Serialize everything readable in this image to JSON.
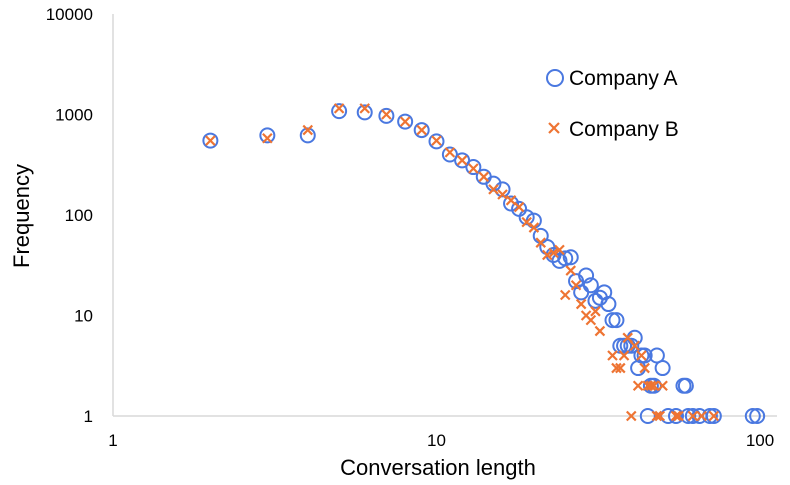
{
  "chart_data": {
    "type": "scatter",
    "xlabel": "Conversation length",
    "ylabel": "Frequency",
    "x_scale": "log",
    "y_scale": "log",
    "xlim": [
      1,
      100
    ],
    "ylim": [
      1,
      10000
    ],
    "x_ticks": [
      "1",
      "10",
      "100"
    ],
    "y_ticks": [
      "1",
      "10",
      "100",
      "1000",
      "10000"
    ],
    "grid": false,
    "legend_position": "top-right",
    "series": [
      {
        "name": "Company A",
        "marker": "circle",
        "color": "#4a78e0",
        "points": [
          [
            2,
            550
          ],
          [
            3,
            620
          ],
          [
            4,
            620
          ],
          [
            5,
            1080
          ],
          [
            6,
            1050
          ],
          [
            7,
            970
          ],
          [
            8,
            850
          ],
          [
            9,
            700
          ],
          [
            10,
            540
          ],
          [
            11,
            400
          ],
          [
            12,
            350
          ],
          [
            13,
            300
          ],
          [
            14,
            240
          ],
          [
            15,
            205
          ],
          [
            16,
            180
          ],
          [
            17,
            130
          ],
          [
            18,
            115
          ],
          [
            19,
            95
          ],
          [
            20,
            88
          ],
          [
            21,
            62
          ],
          [
            22,
            48
          ],
          [
            23,
            40
          ],
          [
            24,
            35
          ],
          [
            25,
            37
          ],
          [
            26,
            38
          ],
          [
            27,
            22
          ],
          [
            28,
            17
          ],
          [
            29,
            25
          ],
          [
            30,
            20
          ],
          [
            31,
            14
          ],
          [
            32,
            15
          ],
          [
            33,
            17
          ],
          [
            34,
            13
          ],
          [
            35,
            9
          ],
          [
            36,
            9
          ],
          [
            37,
            5
          ],
          [
            38,
            5
          ],
          [
            39,
            5
          ],
          [
            40,
            5
          ],
          [
            41,
            6
          ],
          [
            42,
            3
          ],
          [
            43,
            4
          ],
          [
            44,
            4
          ],
          [
            45,
            1
          ],
          [
            46,
            2
          ],
          [
            47,
            2
          ],
          [
            48,
            4
          ],
          [
            50,
            3
          ],
          [
            52,
            1
          ],
          [
            55,
            1
          ],
          [
            58,
            2
          ],
          [
            59,
            2
          ],
          [
            60,
            1
          ],
          [
            62,
            1
          ],
          [
            65,
            1
          ],
          [
            70,
            1
          ],
          [
            72,
            1
          ],
          [
            95,
            1
          ],
          [
            98,
            1
          ]
        ]
      },
      {
        "name": "Company B",
        "marker": "cross",
        "color": "#ee7433",
        "points": [
          [
            2,
            550
          ],
          [
            3,
            580
          ],
          [
            4,
            700
          ],
          [
            5,
            1150
          ],
          [
            6,
            1150
          ],
          [
            7,
            1000
          ],
          [
            8,
            850
          ],
          [
            9,
            700
          ],
          [
            10,
            550
          ],
          [
            11,
            420
          ],
          [
            12,
            350
          ],
          [
            13,
            290
          ],
          [
            14,
            240
          ],
          [
            15,
            180
          ],
          [
            16,
            160
          ],
          [
            17,
            140
          ],
          [
            18,
            120
          ],
          [
            19,
            85
          ],
          [
            20,
            75
          ],
          [
            21,
            53
          ],
          [
            22,
            40
          ],
          [
            23,
            42
          ],
          [
            24,
            45
          ],
          [
            25,
            16
          ],
          [
            26,
            28
          ],
          [
            27,
            20
          ],
          [
            28,
            13
          ],
          [
            29,
            10
          ],
          [
            30,
            9
          ],
          [
            31,
            11
          ],
          [
            32,
            7
          ],
          [
            35,
            4
          ],
          [
            36,
            3
          ],
          [
            37,
            3
          ],
          [
            38,
            4
          ],
          [
            39,
            6
          ],
          [
            40,
            1
          ],
          [
            41,
            5
          ],
          [
            42,
            2
          ],
          [
            43,
            4
          ],
          [
            44,
            3
          ],
          [
            45,
            2
          ],
          [
            46,
            2
          ],
          [
            47,
            2
          ],
          [
            48,
            1
          ],
          [
            49,
            1
          ],
          [
            50,
            2
          ],
          [
            55,
            1
          ],
          [
            56,
            1
          ],
          [
            62,
            1
          ],
          [
            66,
            1
          ],
          [
            72,
            1
          ]
        ]
      }
    ]
  }
}
